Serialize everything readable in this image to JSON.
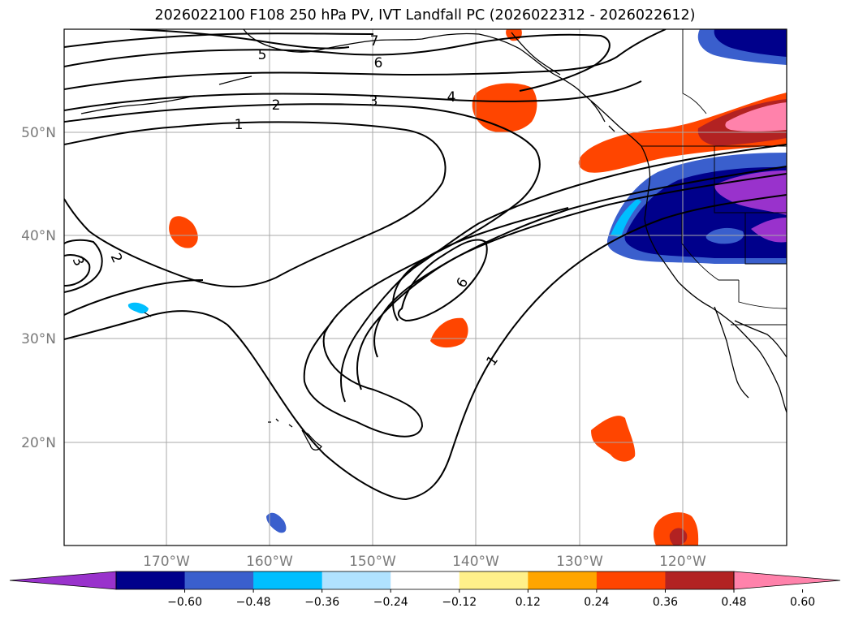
{
  "title": "2026022100 F108 250 hPa PV, IVT Landfall PC (2026022312 - 2026022612)",
  "chart_data": {
    "type": "filled contour map with line contours",
    "title": "2026022100 F108 250 hPa PV, IVT Landfall PC (2026022312 - 2026022612)",
    "map_extent": {
      "lon": [
        -180,
        -110
      ],
      "lat": [
        10,
        60
      ]
    },
    "grid": true,
    "x_ticks": [
      "170°W",
      "160°W",
      "150°W",
      "140°W",
      "130°W",
      "120°W"
    ],
    "y_ticks": [
      "20°N",
      "30°N",
      "40°N",
      "50°N"
    ],
    "line_contour_labels": [
      "1",
      "2",
      "3",
      "4",
      "5",
      "6",
      "7",
      "6",
      "1",
      "2",
      "3"
    ],
    "colorbar": {
      "ticks": [
        "−0.60",
        "−0.48",
        "−0.36",
        "−0.24",
        "−0.12",
        "0.12",
        "0.24",
        "0.36",
        "0.48",
        "0.60"
      ],
      "colors": [
        "#9932cc",
        "#00008b",
        "#3a5fcd",
        "#00bfff",
        "#b0e2ff",
        "#ffffff",
        "#fff08a",
        "#ffa500",
        "#ff4500",
        "#b22222",
        "#ff82ab"
      ],
      "extend": "both"
    }
  }
}
